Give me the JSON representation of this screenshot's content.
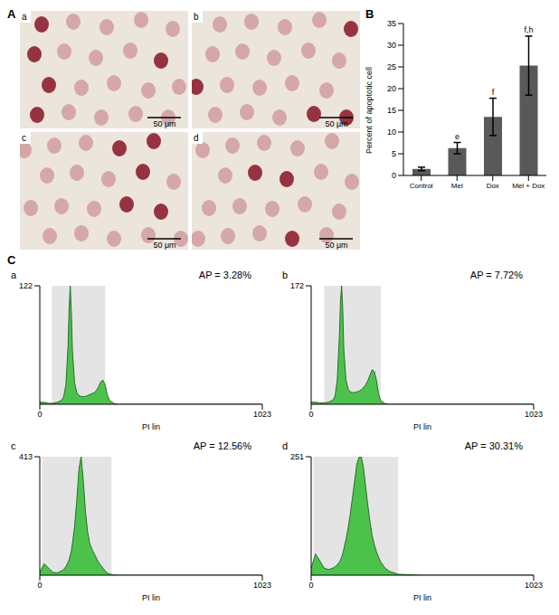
{
  "figure": {
    "panel_labels": [
      "A",
      "B",
      "C"
    ]
  },
  "images": [
    {
      "label": "a",
      "scale_bar": "50 μm"
    },
    {
      "label": "b",
      "scale_bar": "50 μm"
    },
    {
      "label": "c",
      "scale_bar": "50 μm"
    },
    {
      "label": "d",
      "scale_bar": "50 μm"
    }
  ],
  "chart_data": [
    {
      "type": "bar",
      "categories": [
        "Control",
        "Mel",
        "Dox",
        "Mel + Dox"
      ],
      "values": [
        1.5,
        6.3,
        13.5,
        25.3
      ],
      "errors": [
        0.4,
        1.3,
        4.3,
        6.8
      ],
      "annotations": [
        null,
        "e",
        "f",
        "f,h"
      ],
      "color": "#595959",
      "ylabel": "Percent of apoptotic cell",
      "ylim": [
        0,
        35
      ],
      "yticks": [
        0,
        5,
        10,
        15,
        20,
        25,
        30,
        35
      ]
    },
    {
      "type": "area",
      "title": "a",
      "annotation": "AP = 3.28%",
      "xlabel": "PI lin",
      "color": "#4cc24c",
      "x": [
        0,
        20,
        40,
        60,
        80,
        100,
        110,
        120,
        130,
        135,
        140,
        145,
        150,
        160,
        170,
        180,
        190,
        200,
        210,
        220,
        230,
        240,
        250,
        260,
        270,
        280,
        290,
        300,
        310,
        320,
        340,
        360,
        400,
        500,
        700,
        1023
      ],
      "values": [
        2,
        2,
        1,
        1,
        2,
        4,
        8,
        20,
        60,
        100,
        122,
        95,
        55,
        22,
        12,
        9,
        8,
        8,
        8,
        9,
        10,
        11,
        12,
        14,
        18,
        23,
        25,
        20,
        10,
        4,
        1,
        0,
        0,
        0,
        0,
        0
      ],
      "gate": [
        55,
        300
      ],
      "xlim": [
        0,
        1023
      ],
      "xticks": [
        0,
        1023
      ],
      "ylim": [
        0,
        122
      ],
      "yticks": [
        122
      ]
    },
    {
      "type": "area",
      "title": "b",
      "annotation": "AP = 7.72%",
      "xlabel": "PI lin",
      "color": "#4cc24c",
      "x": [
        0,
        20,
        40,
        60,
        80,
        100,
        110,
        120,
        130,
        135,
        140,
        145,
        150,
        160,
        170,
        180,
        190,
        200,
        210,
        220,
        230,
        240,
        250,
        260,
        270,
        280,
        290,
        300,
        310,
        320,
        340,
        360,
        400,
        500,
        700,
        1023
      ],
      "values": [
        3,
        3,
        2,
        2,
        3,
        6,
        12,
        35,
        100,
        150,
        172,
        140,
        80,
        35,
        22,
        18,
        17,
        17,
        18,
        19,
        21,
        24,
        28,
        34,
        42,
        50,
        48,
        35,
        15,
        5,
        1,
        0,
        0,
        0,
        0,
        0
      ],
      "gate": [
        60,
        320
      ],
      "xlim": [
        0,
        1023
      ],
      "xticks": [
        0,
        1023
      ],
      "ylim": [
        0,
        172
      ],
      "yticks": [
        172
      ]
    },
    {
      "type": "area",
      "title": "c",
      "annotation": "AP = 12.56%",
      "xlabel": "PI lin",
      "color": "#4cc24c",
      "x": [
        0,
        20,
        40,
        60,
        80,
        100,
        110,
        120,
        130,
        135,
        140,
        145,
        150,
        160,
        170,
        180,
        190,
        200,
        210,
        220,
        230,
        240,
        250,
        260,
        270,
        280,
        290,
        300,
        310,
        320,
        340,
        360,
        400,
        500,
        700,
        1023
      ],
      "values": [
        10,
        40,
        25,
        10,
        8,
        15,
        20,
        30,
        45,
        55,
        70,
        85,
        110,
        170,
        260,
        370,
        413,
        330,
        220,
        150,
        110,
        90,
        75,
        60,
        45,
        35,
        25,
        15,
        8,
        4,
        1,
        0,
        0,
        0,
        0,
        0
      ],
      "gate": [
        10,
        330
      ],
      "xlim": [
        0,
        1023
      ],
      "xticks": [
        0,
        1023
      ],
      "ylim": [
        0,
        413
      ],
      "yticks": [
        413
      ]
    },
    {
      "type": "area",
      "title": "d",
      "annotation": "AP = 30.31%",
      "xlabel": "PI lin",
      "color": "#4cc24c",
      "x": [
        0,
        20,
        40,
        60,
        80,
        100,
        110,
        120,
        130,
        135,
        140,
        145,
        150,
        160,
        170,
        180,
        190,
        200,
        210,
        220,
        230,
        240,
        250,
        260,
        270,
        280,
        290,
        300,
        310,
        320,
        340,
        360,
        400,
        500,
        700,
        1023
      ],
      "values": [
        15,
        45,
        30,
        15,
        12,
        15,
        18,
        22,
        28,
        32,
        38,
        45,
        55,
        75,
        100,
        130,
        165,
        200,
        235,
        250,
        251,
        230,
        190,
        150,
        115,
        85,
        65,
        50,
        38,
        28,
        15,
        8,
        2,
        0,
        0,
        0
      ],
      "gate": [
        10,
        400
      ],
      "xlim": [
        0,
        1023
      ],
      "xticks": [
        0,
        1023
      ],
      "ylim": [
        0,
        251
      ],
      "yticks": [
        251
      ]
    }
  ]
}
